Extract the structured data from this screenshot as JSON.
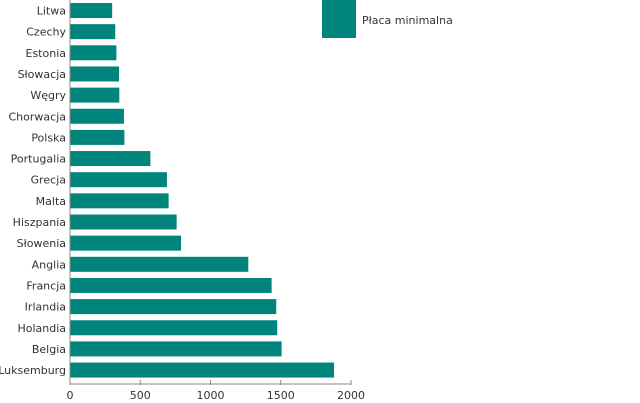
{
  "chart_data": {
    "type": "bar",
    "orientation": "horizontal",
    "categories": [
      "Litwa",
      "Czechy",
      "Estonia",
      "Słowacja",
      "Węgry",
      "Chorwacja",
      "Polska",
      "Portugalia",
      "Grecja",
      "Malta",
      "Hiszpania",
      "Słowenia",
      "Anglia",
      "Francja",
      "Irlandia",
      "Holandia",
      "Belgia",
      "Luksemburg"
    ],
    "series": [
      {
        "name": "Płaca minimalna",
        "values": [
          300,
          322,
          330,
          349,
          351,
          384,
          387,
          572,
          690,
          702,
          759,
          790,
          1269,
          1435,
          1468,
          1475,
          1506,
          1879
        ]
      }
    ],
    "xlim": [
      0,
      2000
    ],
    "xticks": [
      "0",
      "500",
      "1000",
      "1500",
      "2000"
    ],
    "grid": false,
    "legend_position": "top-right",
    "colors": {
      "bar": "#00847c",
      "axis": "#888888"
    }
  }
}
